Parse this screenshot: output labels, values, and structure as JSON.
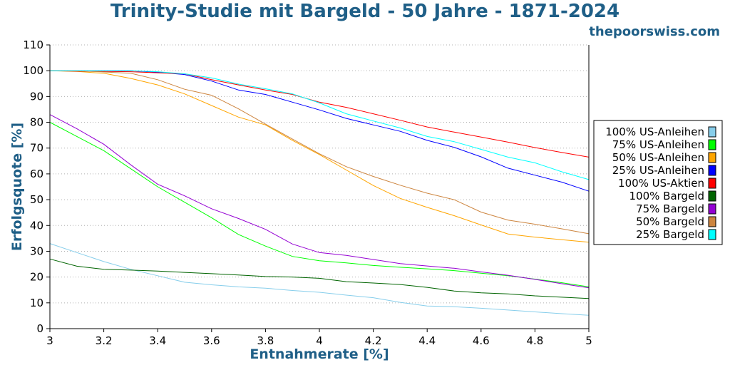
{
  "header": {
    "title": "Trinity-Studie mit Bargeld - 50 Jahre - 1871-2024",
    "brand": "thepoorswiss.com"
  },
  "chart_data": {
    "type": "line",
    "title": "Trinity-Studie mit Bargeld - 50 Jahre - 1871-2024",
    "xlabel": "Entnahmerate [%]",
    "ylabel": "Erfolgsquote [%]",
    "xlim": [
      3,
      5
    ],
    "ylim": [
      0,
      110
    ],
    "xticks": [
      3,
      3.2,
      3.4,
      3.6,
      3.8,
      4,
      4.2,
      4.4,
      4.6,
      4.8,
      5
    ],
    "xtick_labels": [
      "3",
      "3.2",
      "3.4",
      "3.6",
      "3.8",
      "4",
      "4.2",
      "4.4",
      "4.6",
      "4.8",
      "5"
    ],
    "yticks": [
      0,
      10,
      20,
      30,
      40,
      50,
      60,
      70,
      80,
      90,
      100,
      110
    ],
    "ytick_labels": [
      "0",
      "10",
      "20",
      "30",
      "40",
      "50",
      "60",
      "70",
      "80",
      "90",
      "100",
      "110"
    ],
    "grid": "horizontal dotted",
    "legend_position": "right",
    "x": [
      3.0,
      3.1,
      3.2,
      3.3,
      3.4,
      3.5,
      3.6,
      3.7,
      3.8,
      3.9,
      4.0,
      4.1,
      4.2,
      4.3,
      4.4,
      4.5,
      4.6,
      4.7,
      4.8,
      4.9,
      5.0
    ],
    "series": [
      {
        "name": "100% US-Anleihen",
        "color": "#87ceeb",
        "values": [
          33,
          29.5,
          26,
          23,
          20.5,
          18,
          17,
          16.2,
          15.7,
          14.8,
          14.1,
          13,
          12,
          10.2,
          8.8,
          8.5,
          7.9,
          7.2,
          6.5,
          5.8,
          5.2
        ]
      },
      {
        "name": "75% US-Anleihen",
        "color": "#00ff00",
        "values": [
          80,
          74.5,
          69,
          62,
          55,
          49,
          43,
          36.5,
          32,
          28,
          26.3,
          25.5,
          24.5,
          23.8,
          23.2,
          22.5,
          21.5,
          20.5,
          19.2,
          17.8,
          16.2
        ]
      },
      {
        "name": "50% US-Anleihen",
        "color": "#ffa500",
        "values": [
          100,
          99.7,
          99,
          97,
          94.5,
          91,
          86.5,
          82,
          79,
          73,
          67.5,
          61.5,
          55.5,
          50.5,
          47,
          43.8,
          40.2,
          36.7,
          35.5,
          34.5,
          33.5
        ]
      },
      {
        "name": "25% US-Anleihen",
        "color": "#0000ff",
        "values": [
          100,
          100,
          100,
          100,
          99.4,
          98.5,
          96,
          92.5,
          90.8,
          87.8,
          84.8,
          81.5,
          79,
          76.5,
          73,
          70.3,
          66.6,
          62.2,
          59.5,
          56.8,
          53.3
        ]
      },
      {
        "name": "100% US-Aktien",
        "color": "#ff0000",
        "values": [
          100,
          99.8,
          99.7,
          99.6,
          99.2,
          98.8,
          96.5,
          94.5,
          92.5,
          90.8,
          87.8,
          85.8,
          83.3,
          80.8,
          78.2,
          76.2,
          74.3,
          72.3,
          70.2,
          68.3,
          66.5
        ]
      },
      {
        "name": "100% Bargeld",
        "color": "#006400",
        "values": [
          27,
          24.2,
          23,
          22.7,
          22.3,
          21.8,
          21.3,
          20.8,
          20.2,
          20,
          19.5,
          18.2,
          17.7,
          17.1,
          16.0,
          14.6,
          13.9,
          13.5,
          12.7,
          12.2,
          11.7
        ]
      },
      {
        "name": "75% Bargeld",
        "color": "#9400d3",
        "values": [
          83,
          77.5,
          71.5,
          63.5,
          56,
          51.5,
          46.5,
          42.7,
          38.5,
          32.8,
          29.5,
          28.4,
          26.8,
          25.2,
          24.3,
          23.4,
          22,
          20.7,
          19.1,
          17.4,
          15.8
        ]
      },
      {
        "name": "50% Bargeld",
        "color": "#cd853f",
        "values": [
          100,
          100,
          99.5,
          99,
          96.5,
          92.8,
          90.5,
          85.2,
          79.3,
          73.5,
          67.8,
          62.8,
          59,
          55.6,
          52.5,
          50,
          45.2,
          42.1,
          40.5,
          38.7,
          36.8
        ]
      },
      {
        "name": "25% Bargeld",
        "color": "#00ffff",
        "values": [
          100,
          100,
          100,
          100,
          99.6,
          98.8,
          97.2,
          94.8,
          93,
          91,
          87.5,
          83.3,
          80.5,
          77.8,
          74.5,
          72.5,
          69.5,
          66.5,
          64.3,
          60.8,
          57.8
        ]
      }
    ]
  }
}
